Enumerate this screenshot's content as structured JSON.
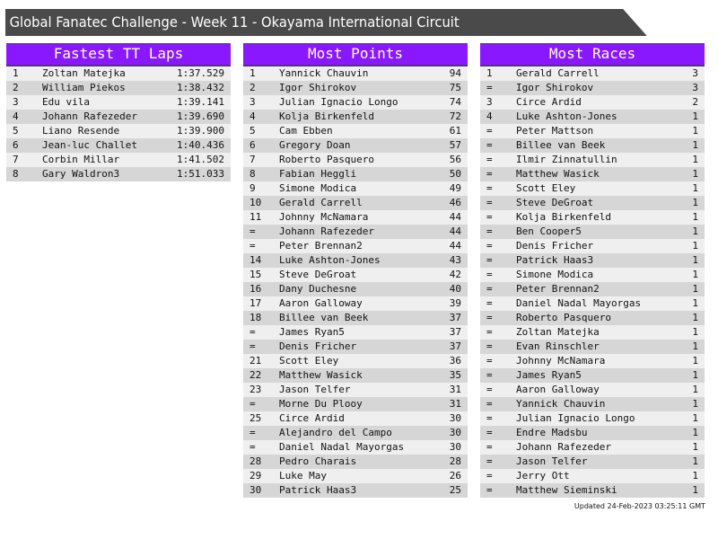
{
  "title": "Global Fanatec Challenge - Week 11 - Okayama International Circuit",
  "colors": {
    "header": "#8a18ff",
    "title_bar": "#4a4a4a"
  },
  "tables": [
    {
      "title": "Fastest TT Laps",
      "rows": [
        [
          "1",
          "Zoltan Matejka",
          "1:37.529"
        ],
        [
          "2",
          "William Piekos",
          "1:38.432"
        ],
        [
          "3",
          "Edu vila",
          "1:39.141"
        ],
        [
          "4",
          "Johann Rafezeder",
          "1:39.690"
        ],
        [
          "5",
          "Liano Resende",
          "1:39.900"
        ],
        [
          "6",
          "Jean-luc Challet",
          "1:40.436"
        ],
        [
          "7",
          "Corbin Millar",
          "1:41.502"
        ],
        [
          "8",
          "Gary Waldron3",
          "1:51.033"
        ]
      ]
    },
    {
      "title": "Most Points",
      "rows": [
        [
          "1",
          "Yannick Chauvin",
          "94"
        ],
        [
          "2",
          "Igor Shirokov",
          "75"
        ],
        [
          "3",
          "Julian Ignacio Longo",
          "74"
        ],
        [
          "4",
          "Kolja Birkenfeld",
          "72"
        ],
        [
          "5",
          "Cam Ebben",
          "61"
        ],
        [
          "6",
          "Gregory Doan",
          "57"
        ],
        [
          "7",
          "Roberto Pasquero",
          "56"
        ],
        [
          "8",
          "Fabian Heggli",
          "50"
        ],
        [
          "9",
          "Simone Modica",
          "49"
        ],
        [
          "10",
          "Gerald Carrell",
          "46"
        ],
        [
          "11",
          "Johnny McNamara",
          "44"
        ],
        [
          "=",
          "Johann Rafezeder",
          "44"
        ],
        [
          "=",
          "Peter Brennan2",
          "44"
        ],
        [
          "14",
          "Luke Ashton-Jones",
          "43"
        ],
        [
          "15",
          "Steve DeGroat",
          "42"
        ],
        [
          "16",
          "Dany Duchesne",
          "40"
        ],
        [
          "17",
          "Aaron Galloway",
          "39"
        ],
        [
          "18",
          "Billee van Beek",
          "37"
        ],
        [
          "=",
          "James Ryan5",
          "37"
        ],
        [
          "=",
          "Denis Fricher",
          "37"
        ],
        [
          "21",
          "Scott Eley",
          "36"
        ],
        [
          "22",
          "Matthew Wasick",
          "35"
        ],
        [
          "23",
          "Jason Telfer",
          "31"
        ],
        [
          "=",
          "Morne Du Plooy",
          "31"
        ],
        [
          "25",
          "Circe Ardid",
          "30"
        ],
        [
          "=",
          "Alejandro del Campo",
          "30"
        ],
        [
          "=",
          "Daniel Nadal Mayorgas",
          "30"
        ],
        [
          "28",
          "Pedro Charais",
          "28"
        ],
        [
          "29",
          "Luke May",
          "26"
        ],
        [
          "30",
          "Patrick Haas3",
          "25"
        ]
      ]
    },
    {
      "title": "Most Races",
      "rows": [
        [
          "1",
          "Gerald Carrell",
          "3"
        ],
        [
          "=",
          "Igor Shirokov",
          "3"
        ],
        [
          "3",
          "Circe Ardid",
          "2"
        ],
        [
          "4",
          "Luke Ashton-Jones",
          "1"
        ],
        [
          "=",
          "Peter Mattson",
          "1"
        ],
        [
          "=",
          "Billee van Beek",
          "1"
        ],
        [
          "=",
          "Ilmir Zinnatullin",
          "1"
        ],
        [
          "=",
          "Matthew Wasick",
          "1"
        ],
        [
          "=",
          "Scott Eley",
          "1"
        ],
        [
          "=",
          "Steve DeGroat",
          "1"
        ],
        [
          "=",
          "Kolja Birkenfeld",
          "1"
        ],
        [
          "=",
          "Ben Cooper5",
          "1"
        ],
        [
          "=",
          "Denis Fricher",
          "1"
        ],
        [
          "=",
          "Patrick Haas3",
          "1"
        ],
        [
          "=",
          "Simone Modica",
          "1"
        ],
        [
          "=",
          "Peter Brennan2",
          "1"
        ],
        [
          "=",
          "Daniel Nadal Mayorgas",
          "1"
        ],
        [
          "=",
          "Roberto Pasquero",
          "1"
        ],
        [
          "=",
          "Zoltan Matejka",
          "1"
        ],
        [
          "=",
          "Evan Rinschler",
          "1"
        ],
        [
          "=",
          "Johnny McNamara",
          "1"
        ],
        [
          "=",
          "James Ryan5",
          "1"
        ],
        [
          "=",
          "Aaron Galloway",
          "1"
        ],
        [
          "=",
          "Yannick Chauvin",
          "1"
        ],
        [
          "=",
          "Julian Ignacio Longo",
          "1"
        ],
        [
          "=",
          "Endre Madsbu",
          "1"
        ],
        [
          "=",
          "Johann Rafezeder",
          "1"
        ],
        [
          "=",
          "Jason Telfer",
          "1"
        ],
        [
          "=",
          "Jerry Ott",
          "1"
        ],
        [
          "=",
          "Matthew Sieminski",
          "1"
        ]
      ]
    }
  ],
  "updated": "Updated 24-Feb-2023 03:25:11 GMT"
}
